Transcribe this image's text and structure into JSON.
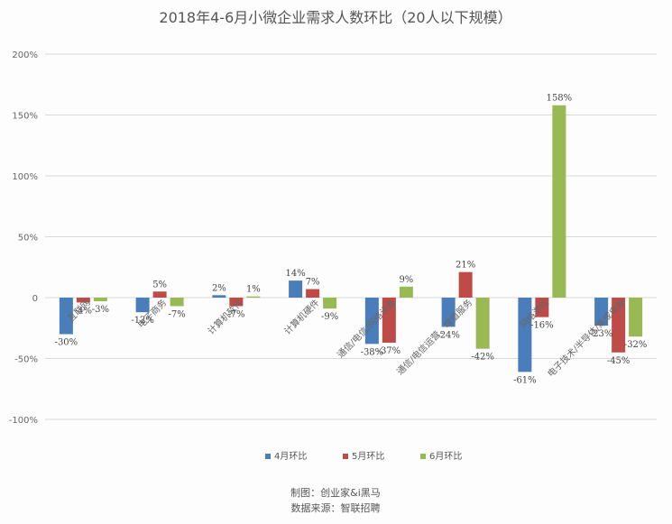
{
  "chart_data": {
    "type": "bar",
    "title": "2018年4-6月小微企业需求人数环比（20人以下规模）",
    "categories": [
      "互联网",
      "电子商务",
      "计算机软件",
      "计算机硬件",
      "通信/电信/网络设备",
      "通信/电信运营、增值服务",
      "网络游戏",
      "电子技术/半导体/集成电路"
    ],
    "series": [
      {
        "name": "4月环比",
        "color": "#4a7ebb",
        "values": [
          -30,
          -12,
          2,
          14,
          -38,
          -24,
          -61,
          -23
        ]
      },
      {
        "name": "5月环比",
        "color": "#be4b48",
        "values": [
          -4,
          5,
          -7,
          7,
          -37,
          21,
          -16,
          -45
        ]
      },
      {
        "name": "6月环比",
        "color": "#98b954",
        "values": [
          -3,
          -7,
          1,
          -9,
          9,
          -42,
          158,
          -32
        ]
      }
    ],
    "ylim": [
      -100,
      200
    ],
    "yticks": [
      "-100%",
      "-50%",
      "0",
      "50%",
      "100%",
      "150%",
      "200%"
    ],
    "grid": true,
    "legend_position": "bottom"
  },
  "credits": {
    "line1": "制图：创业家&i黑马",
    "line2": "数据来源：智联招聘"
  }
}
